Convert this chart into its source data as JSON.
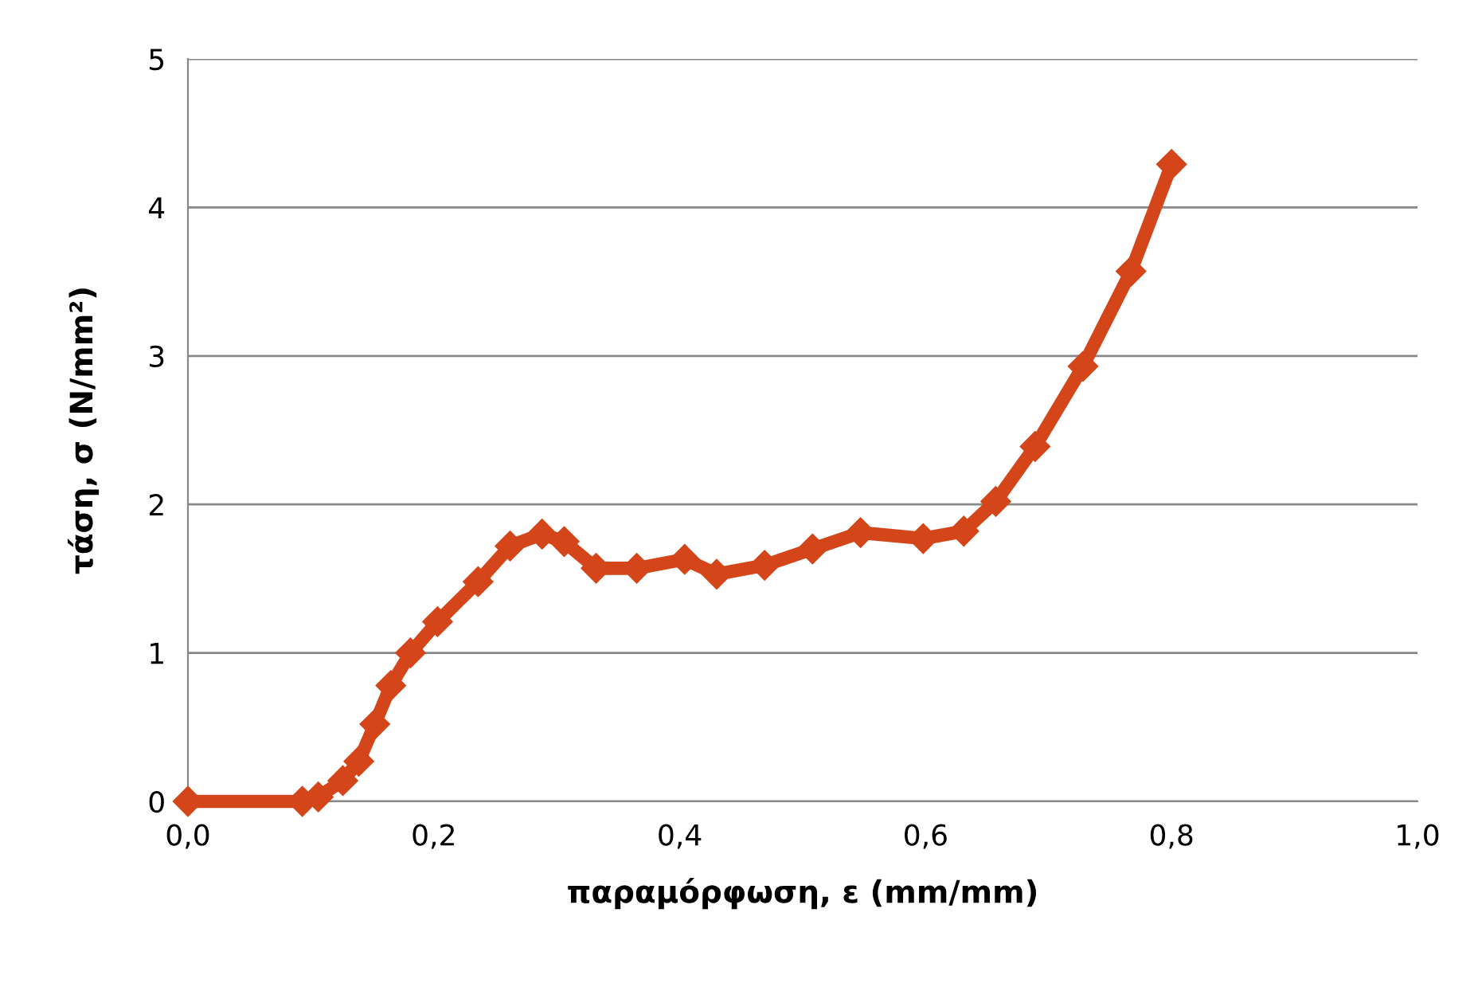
{
  "chart_data": {
    "type": "line",
    "xlabel": "παραμόρφωση, ε (mm/mm)",
    "ylabel": "τάση, σ (N/mm²)",
    "x": [
      0,
      0.093,
      0.106,
      0.126,
      0.139,
      0.152,
      0.165,
      0.181,
      0.203,
      0.236,
      0.262,
      0.288,
      0.306,
      0.332,
      0.365,
      0.404,
      0.43,
      0.469,
      0.508,
      0.547,
      0.598,
      0.631,
      0.657,
      0.689,
      0.728,
      0.767,
      0.8
    ],
    "series": [
      {
        "color": "#d4461a",
        "values": [
          0,
          0,
          0.03,
          0.14,
          0.27,
          0.52,
          0.78,
          1.0,
          1.21,
          1.48,
          1.72,
          1.8,
          1.75,
          1.57,
          1.57,
          1.63,
          1.53,
          1.59,
          1.7,
          1.81,
          1.77,
          1.82,
          2.02,
          2.39,
          2.93,
          3.57,
          4.29
        ]
      }
    ],
    "xlim": [
      0,
      1.0
    ],
    "ylim": [
      0,
      5
    ],
    "xticks": [
      {
        "value": 0,
        "label": "0,0"
      },
      {
        "value": 0.2,
        "label": "0,2"
      },
      {
        "value": 0.4,
        "label": "0,4"
      },
      {
        "value": 0.6,
        "label": "0,6"
      },
      {
        "value": 0.8,
        "label": "0,8"
      },
      {
        "value": 1.0,
        "label": "1,0"
      }
    ],
    "yticks": [
      0,
      1,
      2,
      3,
      4,
      5
    ],
    "grid": "y",
    "marker": "diamond",
    "line_style": "solid"
  }
}
